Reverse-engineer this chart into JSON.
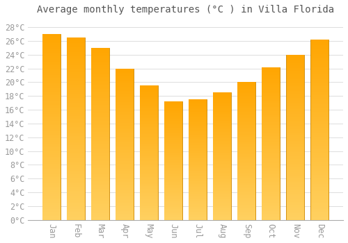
{
  "title": "Average monthly temperatures (°C ) in Villa Florida",
  "months": [
    "Jan",
    "Feb",
    "Mar",
    "Apr",
    "May",
    "Jun",
    "Jul",
    "Aug",
    "Sep",
    "Oct",
    "Nov",
    "Dec"
  ],
  "values": [
    27.0,
    26.5,
    25.0,
    22.0,
    19.5,
    17.2,
    17.5,
    18.5,
    20.0,
    22.2,
    24.0,
    26.2
  ],
  "bar_color_top": "#FFA500",
  "bar_color_bottom": "#FFD060",
  "bar_edge_color": "#CC8800",
  "background_color": "#FFFFFF",
  "grid_color": "#DDDDDD",
  "ylim": [
    0,
    29
  ],
  "yticks": [
    0,
    2,
    4,
    6,
    8,
    10,
    12,
    14,
    16,
    18,
    20,
    22,
    24,
    26,
    28
  ],
  "title_fontsize": 10,
  "tick_fontsize": 8.5,
  "bar_width": 0.75,
  "tick_color": "#999999",
  "title_color": "#555555"
}
